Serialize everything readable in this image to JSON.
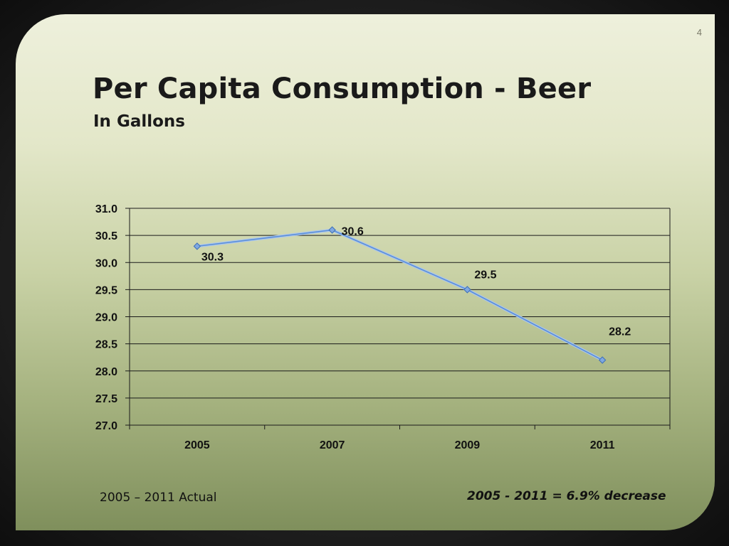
{
  "slide": {
    "page_number": "4",
    "title": "Per Capita Consumption - Beer",
    "subtitle": "In Gallons",
    "footer_left": "2005 – 2011 Actual",
    "footer_right": "2005 - 2011 = 6.9% decrease"
  },
  "chart_data": {
    "type": "line",
    "categories": [
      "2005",
      "2007",
      "2009",
      "2011"
    ],
    "series": [
      {
        "values": [
          30.3,
          30.6,
          29.5,
          28.2
        ],
        "color": "#5b8fd6"
      }
    ],
    "data_labels": [
      "30.3",
      "30.6",
      "29.5",
      "28.2"
    ],
    "y_ticks": [
      "27.0",
      "27.5",
      "28.0",
      "28.5",
      "29.0",
      "29.5",
      "30.0",
      "30.5",
      "31.0"
    ],
    "ylim": [
      27.0,
      31.0
    ],
    "grid": true,
    "legend": "none",
    "title": "",
    "xlabel": "",
    "ylabel": ""
  }
}
